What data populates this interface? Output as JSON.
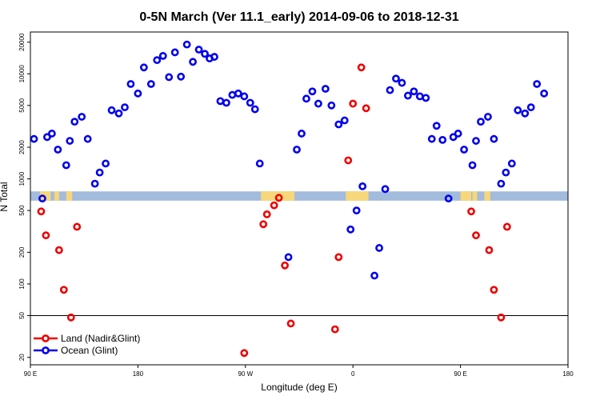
{
  "chart_data": {
    "type": "scatter",
    "title": "0-5N March (Ver 11.1_early)   2014-09-06 to 2018-12-31",
    "xlabel": "Longitude (deg E)",
    "ylabel": "N Total",
    "x_domain": [
      0,
      450
    ],
    "y_scale": "log",
    "ylim": [
      17,
      25000
    ],
    "x_ticks": [
      {
        "pos": 0,
        "label": "90 E"
      },
      {
        "pos": 90,
        "label": "180"
      },
      {
        "pos": 180,
        "label": "90 W"
      },
      {
        "pos": 270,
        "label": "0"
      },
      {
        "pos": 360,
        "label": "90 E"
      },
      {
        "pos": 450,
        "label": "180"
      }
    ],
    "y_ticks": [
      {
        "value": 20,
        "label": "20"
      },
      {
        "value": 50,
        "label": "50"
      },
      {
        "value": 100,
        "label": "100"
      },
      {
        "value": 200,
        "label": "200"
      },
      {
        "value": 500,
        "label": "500"
      },
      {
        "value": 1000,
        "label": "1000"
      },
      {
        "value": 2000,
        "label": "2000"
      },
      {
        "value": 5000,
        "label": "5000"
      },
      {
        "value": 10000,
        "label": "10000"
      },
      {
        "value": 20000,
        "label": "20000"
      }
    ],
    "reference_line": 50,
    "map_strip": {
      "y_range": [
        620,
        760
      ],
      "ocean_color": "#a3bbdc",
      "land_color": "#f7d77a",
      "land_segments": [
        [
          8,
          17
        ],
        [
          20,
          24
        ],
        [
          30,
          35
        ],
        [
          193,
          221
        ],
        [
          264,
          283
        ],
        [
          360,
          369
        ],
        [
          370,
          374
        ],
        [
          380,
          385
        ]
      ]
    },
    "series": [
      {
        "name": "Land (Nadir&Glint)",
        "color": "#ee0000",
        "points": [
          [
            9,
            490
          ],
          [
            13,
            290
          ],
          [
            24,
            210
          ],
          [
            28,
            88
          ],
          [
            34,
            48
          ],
          [
            39,
            350
          ],
          [
            179,
            22
          ],
          [
            195,
            370
          ],
          [
            198,
            460
          ],
          [
            204,
            560
          ],
          [
            208,
            660
          ],
          [
            213,
            150
          ],
          [
            218,
            42
          ],
          [
            255,
            37
          ],
          [
            258,
            180
          ],
          [
            266,
            1500
          ],
          [
            270,
            5200
          ],
          [
            277,
            11500
          ],
          [
            281,
            4700
          ],
          [
            369,
            490
          ],
          [
            373,
            290
          ],
          [
            384,
            210
          ],
          [
            388,
            88
          ],
          [
            394,
            48
          ],
          [
            399,
            350
          ]
        ]
      },
      {
        "name": "Ocean (Glint)",
        "color": "#0000ee",
        "points": [
          [
            3,
            2400
          ],
          [
            10,
            650
          ],
          [
            14,
            2500
          ],
          [
            18,
            2700
          ],
          [
            23,
            1900
          ],
          [
            30,
            1350
          ],
          [
            33,
            2300
          ],
          [
            37,
            3500
          ],
          [
            43,
            3900
          ],
          [
            48,
            2400
          ],
          [
            54,
            900
          ],
          [
            58,
            1150
          ],
          [
            63,
            1400
          ],
          [
            68,
            4500
          ],
          [
            74,
            4200
          ],
          [
            79,
            4800
          ],
          [
            84,
            8000
          ],
          [
            90,
            6500
          ],
          [
            95,
            11500
          ],
          [
            101,
            8000
          ],
          [
            106,
            13500
          ],
          [
            111,
            14800
          ],
          [
            116,
            9300
          ],
          [
            121,
            16000
          ],
          [
            126,
            9400
          ],
          [
            131,
            19000
          ],
          [
            136,
            13000
          ],
          [
            141,
            17000
          ],
          [
            146,
            15500
          ],
          [
            150,
            14000
          ],
          [
            154,
            14500
          ],
          [
            159,
            5500
          ],
          [
            164,
            5300
          ],
          [
            169,
            6300
          ],
          [
            174,
            6500
          ],
          [
            179,
            6100
          ],
          [
            184,
            5300
          ],
          [
            188,
            4600
          ],
          [
            192,
            1400
          ],
          [
            216,
            180
          ],
          [
            223,
            1900
          ],
          [
            227,
            2700
          ],
          [
            231,
            5800
          ],
          [
            236,
            6800
          ],
          [
            241,
            5200
          ],
          [
            247,
            7200
          ],
          [
            252,
            5000
          ],
          [
            258,
            3300
          ],
          [
            263,
            3600
          ],
          [
            268,
            330
          ],
          [
            273,
            500
          ],
          [
            278,
            850
          ],
          [
            288,
            120
          ],
          [
            292,
            220
          ],
          [
            297,
            800
          ],
          [
            301,
            7000
          ],
          [
            306,
            9000
          ],
          [
            311,
            8200
          ],
          [
            316,
            6200
          ],
          [
            321,
            6800
          ],
          [
            326,
            6100
          ],
          [
            331,
            5900
          ],
          [
            336,
            2400
          ],
          [
            340,
            3200
          ],
          [
            345,
            2350
          ],
          [
            350,
            650
          ],
          [
            354,
            2500
          ],
          [
            358,
            2700
          ],
          [
            363,
            1900
          ],
          [
            370,
            1350
          ],
          [
            373,
            2300
          ],
          [
            377,
            3500
          ],
          [
            383,
            3900
          ],
          [
            388,
            2400
          ],
          [
            394,
            900
          ],
          [
            398,
            1150
          ],
          [
            403,
            1400
          ],
          [
            408,
            4500
          ],
          [
            414,
            4200
          ],
          [
            419,
            4800
          ],
          [
            424,
            8000
          ],
          [
            430,
            6500
          ]
        ]
      }
    ],
    "legend": {
      "position": "bottom-left",
      "entries": [
        {
          "label": "Land (Nadir&Glint)",
          "color": "#ee0000"
        },
        {
          "label": "Ocean (Glint)",
          "color": "#0000ee"
        }
      ]
    }
  }
}
